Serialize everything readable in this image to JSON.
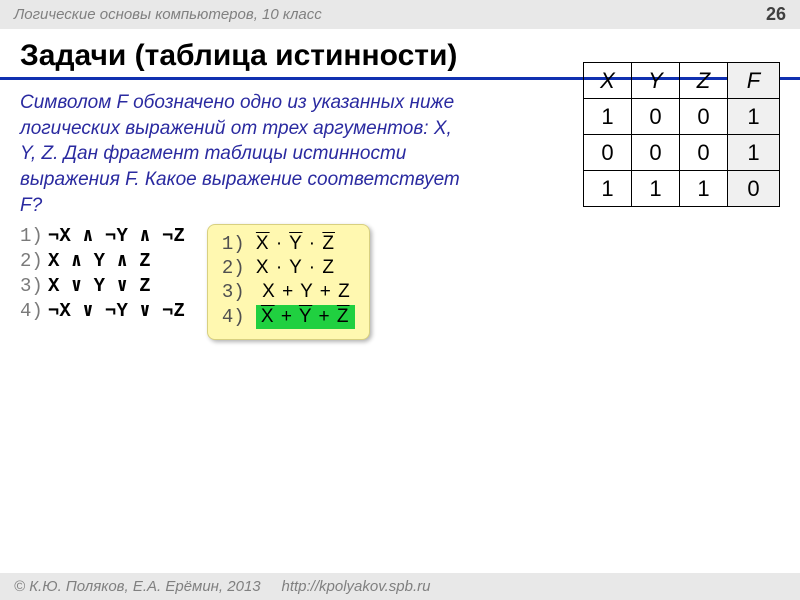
{
  "header": {
    "course": "Логические основы компьютеров, 10 класс",
    "page": "26"
  },
  "title": "Задачи (таблица истинности)",
  "problem": "Символом F обозначено одно из указанных ниже логических выражений от трех аргументов: X, Y, Z. Дан фрагмент таблицы истинности выражения F. Какое выражение соответствует F?",
  "options_left": {
    "1": "¬X ∧ ¬Y ∧ ¬Z",
    "2": "X ∧ Y ∧ Z",
    "3": "X ∨ Y ∨ Z",
    "4": "¬X ∨ ¬Y ∨ ¬Z"
  },
  "options_right": {
    "num1": "1)",
    "num2": "2)",
    "num3": "3)",
    "num4": "4)"
  },
  "truth": {
    "headers": {
      "x": "X",
      "y": "Y",
      "z": "Z",
      "f": "F"
    },
    "rows": [
      {
        "x": "1",
        "y": "0",
        "z": "0",
        "f": "1"
      },
      {
        "x": "0",
        "y": "0",
        "z": "0",
        "f": "1"
      },
      {
        "x": "1",
        "y": "1",
        "z": "1",
        "f": "0"
      }
    ]
  },
  "footer": {
    "copyright": "© К.Ю. Поляков, Е.А. Ерёмин, 2013",
    "url": "http://kpolyakov.spb.ru"
  },
  "colors": {
    "header_bg": "#e8e8e8",
    "title_rule": "#1030b0",
    "problem_text": "#2a2aa0",
    "yellow_box": "#fff8b0",
    "highlight": "#20d040",
    "fcol_bg": "#f0f0f0"
  }
}
